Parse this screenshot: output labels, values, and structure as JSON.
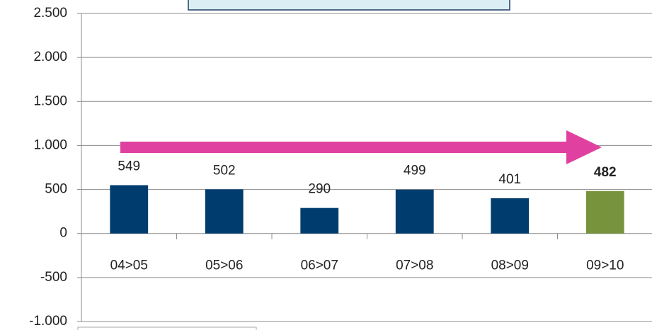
{
  "chart_data": {
    "type": "bar",
    "categories": [
      "04>05",
      "05>06",
      "06>07",
      "07>08",
      "08>09",
      "09>10"
    ],
    "values": [
      549,
      502,
      290,
      499,
      401,
      482
    ],
    "colors": [
      "#003d6e",
      "#003d6e",
      "#003d6e",
      "#003d6e",
      "#003d6e",
      "#77933c"
    ],
    "bold_labels": [
      false,
      false,
      false,
      false,
      false,
      true
    ],
    "ylim": [
      -1000,
      2500
    ],
    "yticks": [
      {
        "value": -1000,
        "label": "-1.000"
      },
      -500,
      0,
      500,
      {
        "value": 1000,
        "label": "1.000"
      },
      {
        "value": 1500,
        "label": "1.500"
      },
      {
        "value": 2000,
        "label": "2.000"
      },
      {
        "value": 2500,
        "label": "2.500"
      }
    ],
    "grid": true
  }
}
